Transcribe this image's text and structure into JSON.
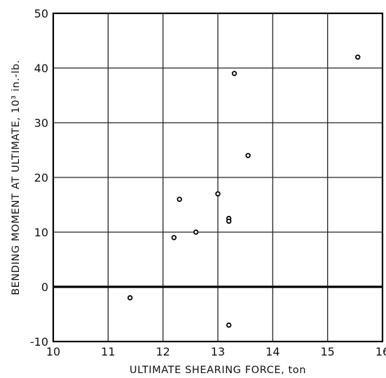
{
  "chart_data": {
    "type": "scatter",
    "title": "",
    "xlabel": "ULTIMATE SHEARING FORCE, ton",
    "ylabel": "BENDING MOMENT AT ULTIMATE, 10³ in.-lb.",
    "xlim": [
      10,
      16
    ],
    "ylim": [
      -10,
      50
    ],
    "x_ticks": [
      10,
      11,
      12,
      13,
      14,
      15,
      16
    ],
    "y_ticks": [
      -10,
      0,
      10,
      20,
      30,
      40,
      50
    ],
    "x_tick_labels": [
      "10",
      "11",
      "12",
      "13",
      "14",
      "15",
      "16"
    ],
    "y_tick_labels": [
      "-10",
      "0",
      "10",
      "20",
      "30",
      "40",
      "50"
    ],
    "grid": true,
    "zero_line": true,
    "points": [
      {
        "x": 11.4,
        "y": -2
      },
      {
        "x": 12.2,
        "y": 9
      },
      {
        "x": 12.3,
        "y": 16
      },
      {
        "x": 12.6,
        "y": 10
      },
      {
        "x": 13.0,
        "y": 17
      },
      {
        "x": 13.2,
        "y": 12.5
      },
      {
        "x": 13.2,
        "y": 12
      },
      {
        "x": 13.2,
        "y": -7
      },
      {
        "x": 13.3,
        "y": 39
      },
      {
        "x": 13.55,
        "y": 24
      },
      {
        "x": 15.55,
        "y": 42
      }
    ]
  }
}
